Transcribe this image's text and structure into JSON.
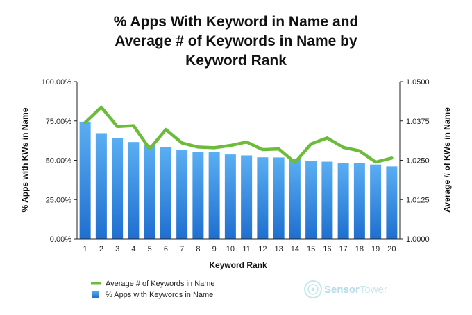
{
  "chart_data": {
    "type": "bar",
    "title_lines": [
      "% Apps With Keyword in Name and",
      "Average # of Keywords in Name by",
      "Keyword Rank"
    ],
    "xlabel": "Keyword Rank",
    "ylabel_left": "% Apps with KWs in Name",
    "ylabel_right": "Average # of KWs in Name",
    "categories": [
      "1",
      "2",
      "3",
      "4",
      "5",
      "6",
      "7",
      "8",
      "9",
      "10",
      "11",
      "12",
      "13",
      "14",
      "15",
      "16",
      "17",
      "18",
      "19",
      "20"
    ],
    "y_left": {
      "min": 0,
      "max": 1.0,
      "ticks": [
        "0.00%",
        "25.00%",
        "50.00%",
        "75.00%",
        "100.00%"
      ]
    },
    "y_right": {
      "min": 1.0,
      "max": 1.05,
      "ticks": [
        "1.0000",
        "1.0125",
        "1.0250",
        "1.0375",
        "1.0500"
      ]
    },
    "series": [
      {
        "name": "% Apps with Keywords in Name",
        "kind": "bar",
        "axis": "left",
        "color": "#2f86e0",
        "values": [
          0.745,
          0.672,
          0.643,
          0.616,
          0.596,
          0.582,
          0.565,
          0.555,
          0.552,
          0.537,
          0.531,
          0.519,
          0.518,
          0.51,
          0.495,
          0.491,
          0.484,
          0.483,
          0.473,
          0.461
        ]
      },
      {
        "name": "Average # of Keywords in Name",
        "kind": "line",
        "axis": "right",
        "color": "#6dbb3a",
        "values": [
          1.037,
          1.0419,
          1.0357,
          1.036,
          1.0286,
          1.0348,
          1.0305,
          1.0292,
          1.029,
          1.0297,
          1.0308,
          1.0284,
          1.0286,
          1.0243,
          1.0302,
          1.0321,
          1.0291,
          1.028,
          1.0244,
          1.0257
        ]
      }
    ],
    "legend_position": "bottom-left",
    "grid": false
  },
  "watermark": {
    "brand_first": "Sensor",
    "brand_second": "Tower"
  },
  "colors": {
    "bar_top": "#5aaef2",
    "bar_bottom": "#1f6fd0",
    "line": "#6dbb3a",
    "axis": "#222222"
  }
}
